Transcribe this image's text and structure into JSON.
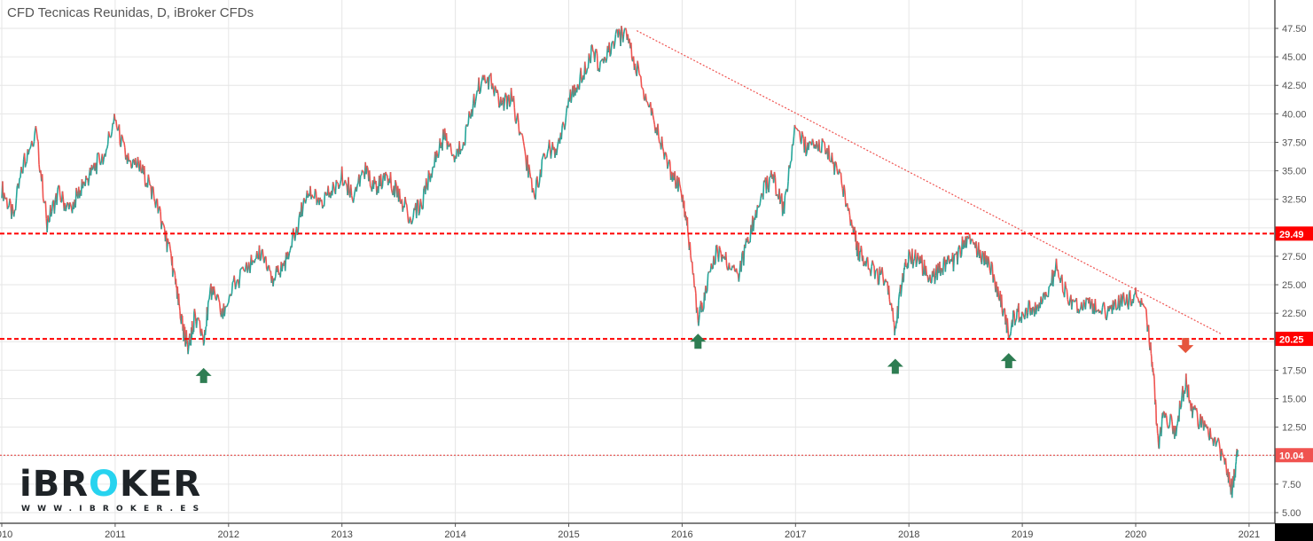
{
  "header": {
    "title": "CFD Tecnicas Reunidas, D, iBroker CFDs"
  },
  "logo": {
    "prefix": "iBR",
    "highlight": "O",
    "suffix": "KER",
    "url": "WWW.IBROKER.ES"
  },
  "colors": {
    "up": "#26a69a",
    "down": "#ef5350",
    "wick": "#555555",
    "level_line": "#ff0000",
    "trend_line": "#ef5350",
    "arrow_up": "#2e7d52",
    "arrow_down": "#e5553c",
    "grid": "#e6e6e6",
    "axis": "#555555"
  },
  "chart_data": {
    "type": "line",
    "title": "CFD Tecnicas Reunidas, D, iBroker CFDs",
    "xlabel": "",
    "ylabel": "",
    "x_ticks": [
      "2010",
      "2011",
      "2012",
      "2013",
      "2014",
      "2015",
      "2016",
      "2017",
      "2018",
      "2019",
      "2020",
      "2021"
    ],
    "y_ticks": [
      "5.00",
      "7.50",
      "10.00",
      "12.50",
      "15.00",
      "17.50",
      "20.00",
      "22.50",
      "25.00",
      "27.50",
      "30.00",
      "32.50",
      "35.00",
      "37.50",
      "40.00",
      "42.50",
      "45.00",
      "47.50"
    ],
    "ylim": [
      4.2,
      49.5
    ],
    "grid": true,
    "horizontal_levels": [
      {
        "label": "29.49",
        "value": 29.49,
        "style": "dashed-thick"
      },
      {
        "label": "20.25",
        "value": 20.25,
        "style": "dashed-thick"
      },
      {
        "label": "10.04",
        "value": 10.04,
        "style": "dotted-thin",
        "current_price": true
      }
    ],
    "trend_line": {
      "from": {
        "year": 2015.6,
        "value": 47.3
      },
      "to": {
        "year": 2020.75,
        "value": 20.7
      }
    },
    "annotations": [
      {
        "type": "arrow-up",
        "year": 2011.78,
        "value": 17.0
      },
      {
        "type": "arrow-up",
        "year": 2016.14,
        "value": 20.0
      },
      {
        "type": "arrow-up",
        "year": 2017.88,
        "value": 17.8
      },
      {
        "type": "arrow-up",
        "year": 2018.88,
        "value": 18.3
      },
      {
        "type": "arrow-down",
        "year": 2020.44,
        "value": 19.7
      }
    ],
    "series": [
      {
        "name": "Close (approx.)",
        "x": [
          2010.0,
          2010.1,
          2010.2,
          2010.3,
          2010.4,
          2010.5,
          2010.6,
          2010.7,
          2010.8,
          2010.9,
          2011.0,
          2011.1,
          2011.2,
          2011.3,
          2011.4,
          2011.5,
          2011.55,
          2011.6,
          2011.65,
          2011.7,
          2011.78,
          2011.85,
          2011.95,
          2012.05,
          2012.2,
          2012.3,
          2012.4,
          2012.5,
          2012.6,
          2012.7,
          2012.8,
          2012.9,
          2013.0,
          2013.1,
          2013.2,
          2013.3,
          2013.4,
          2013.5,
          2013.6,
          2013.7,
          2013.8,
          2013.9,
          2014.0,
          2014.1,
          2014.2,
          2014.3,
          2014.4,
          2014.5,
          2014.6,
          2014.7,
          2014.8,
          2014.9,
          2015.0,
          2015.1,
          2015.2,
          2015.3,
          2015.4,
          2015.5,
          2015.6,
          2015.7,
          2015.8,
          2015.9,
          2016.0,
          2016.05,
          2016.14,
          2016.2,
          2016.3,
          2016.4,
          2016.5,
          2016.6,
          2016.7,
          2016.8,
          2016.9,
          2017.0,
          2017.1,
          2017.2,
          2017.3,
          2017.4,
          2017.5,
          2017.55,
          2017.6,
          2017.7,
          2017.8,
          2017.88,
          2017.95,
          2018.0,
          2018.1,
          2018.2,
          2018.3,
          2018.4,
          2018.5,
          2018.6,
          2018.7,
          2018.8,
          2018.88,
          2018.95,
          2019.0,
          2019.1,
          2019.2,
          2019.3,
          2019.4,
          2019.5,
          2019.6,
          2019.7,
          2019.8,
          2019.9,
          2020.0,
          2020.1,
          2020.15,
          2020.2,
          2020.25,
          2020.35,
          2020.44,
          2020.5,
          2020.6,
          2020.7,
          2020.8,
          2020.85,
          2020.9
        ],
        "values": [
          33.5,
          31.0,
          36.0,
          38.5,
          30.5,
          33.0,
          31.5,
          33.5,
          35.0,
          36.5,
          39.5,
          36.0,
          35.5,
          34.0,
          31.0,
          27.0,
          24.0,
          21.0,
          19.5,
          22.0,
          20.5,
          24.5,
          22.5,
          25.0,
          27.0,
          28.0,
          25.5,
          27.0,
          30.0,
          33.5,
          32.0,
          33.0,
          34.5,
          33.0,
          35.0,
          33.5,
          34.5,
          33.0,
          31.0,
          32.0,
          35.5,
          38.0,
          36.0,
          38.5,
          42.5,
          43.0,
          41.0,
          41.5,
          37.0,
          33.0,
          37.0,
          36.5,
          41.0,
          43.0,
          45.5,
          44.0,
          46.5,
          47.0,
          44.0,
          41.0,
          38.0,
          35.0,
          33.0,
          30.0,
          22.0,
          24.0,
          28.0,
          27.0,
          26.0,
          29.5,
          33.0,
          34.5,
          31.5,
          39.0,
          37.0,
          37.5,
          36.5,
          34.0,
          30.5,
          28.0,
          27.5,
          26.0,
          25.5,
          21.0,
          26.0,
          27.5,
          27.0,
          25.5,
          26.5,
          27.0,
          29.0,
          28.0,
          27.0,
          24.0,
          21.0,
          22.5,
          22.5,
          23.0,
          23.5,
          26.5,
          24.0,
          23.0,
          23.5,
          22.5,
          23.0,
          23.5,
          24.0,
          22.0,
          18.0,
          11.0,
          14.0,
          12.0,
          16.5,
          14.0,
          12.5,
          11.5,
          9.0,
          6.8,
          10.5
        ]
      }
    ]
  },
  "axis": {
    "price_labels": [
      {
        "text": "47.50",
        "value": 47.5
      },
      {
        "text": "45.00",
        "value": 45.0
      },
      {
        "text": "42.50",
        "value": 42.5
      },
      {
        "text": "40.00",
        "value": 40.0
      },
      {
        "text": "37.50",
        "value": 37.5
      },
      {
        "text": "35.00",
        "value": 35.0
      },
      {
        "text": "32.50",
        "value": 32.5
      },
      {
        "text": "27.50",
        "value": 27.5
      },
      {
        "text": "25.00",
        "value": 25.0
      },
      {
        "text": "22.50",
        "value": 22.5
      },
      {
        "text": "17.50",
        "value": 17.5
      },
      {
        "text": "15.00",
        "value": 15.0
      },
      {
        "text": "12.50",
        "value": 12.5
      },
      {
        "text": "7.50",
        "value": 7.5
      },
      {
        "text": "5.00",
        "value": 5.0
      }
    ],
    "time_labels": [
      {
        "text": "2010",
        "year": 2010
      },
      {
        "text": "2011",
        "year": 2011
      },
      {
        "text": "2012",
        "year": 2012
      },
      {
        "text": "2013",
        "year": 2013
      },
      {
        "text": "2014",
        "year": 2014
      },
      {
        "text": "2015",
        "year": 2015
      },
      {
        "text": "2016",
        "year": 2016
      },
      {
        "text": "2017",
        "year": 2017
      },
      {
        "text": "2018",
        "year": 2018
      },
      {
        "text": "2019",
        "year": 2019
      },
      {
        "text": "2020",
        "year": 2020
      },
      {
        "text": "2021",
        "year": 2021
      }
    ]
  }
}
